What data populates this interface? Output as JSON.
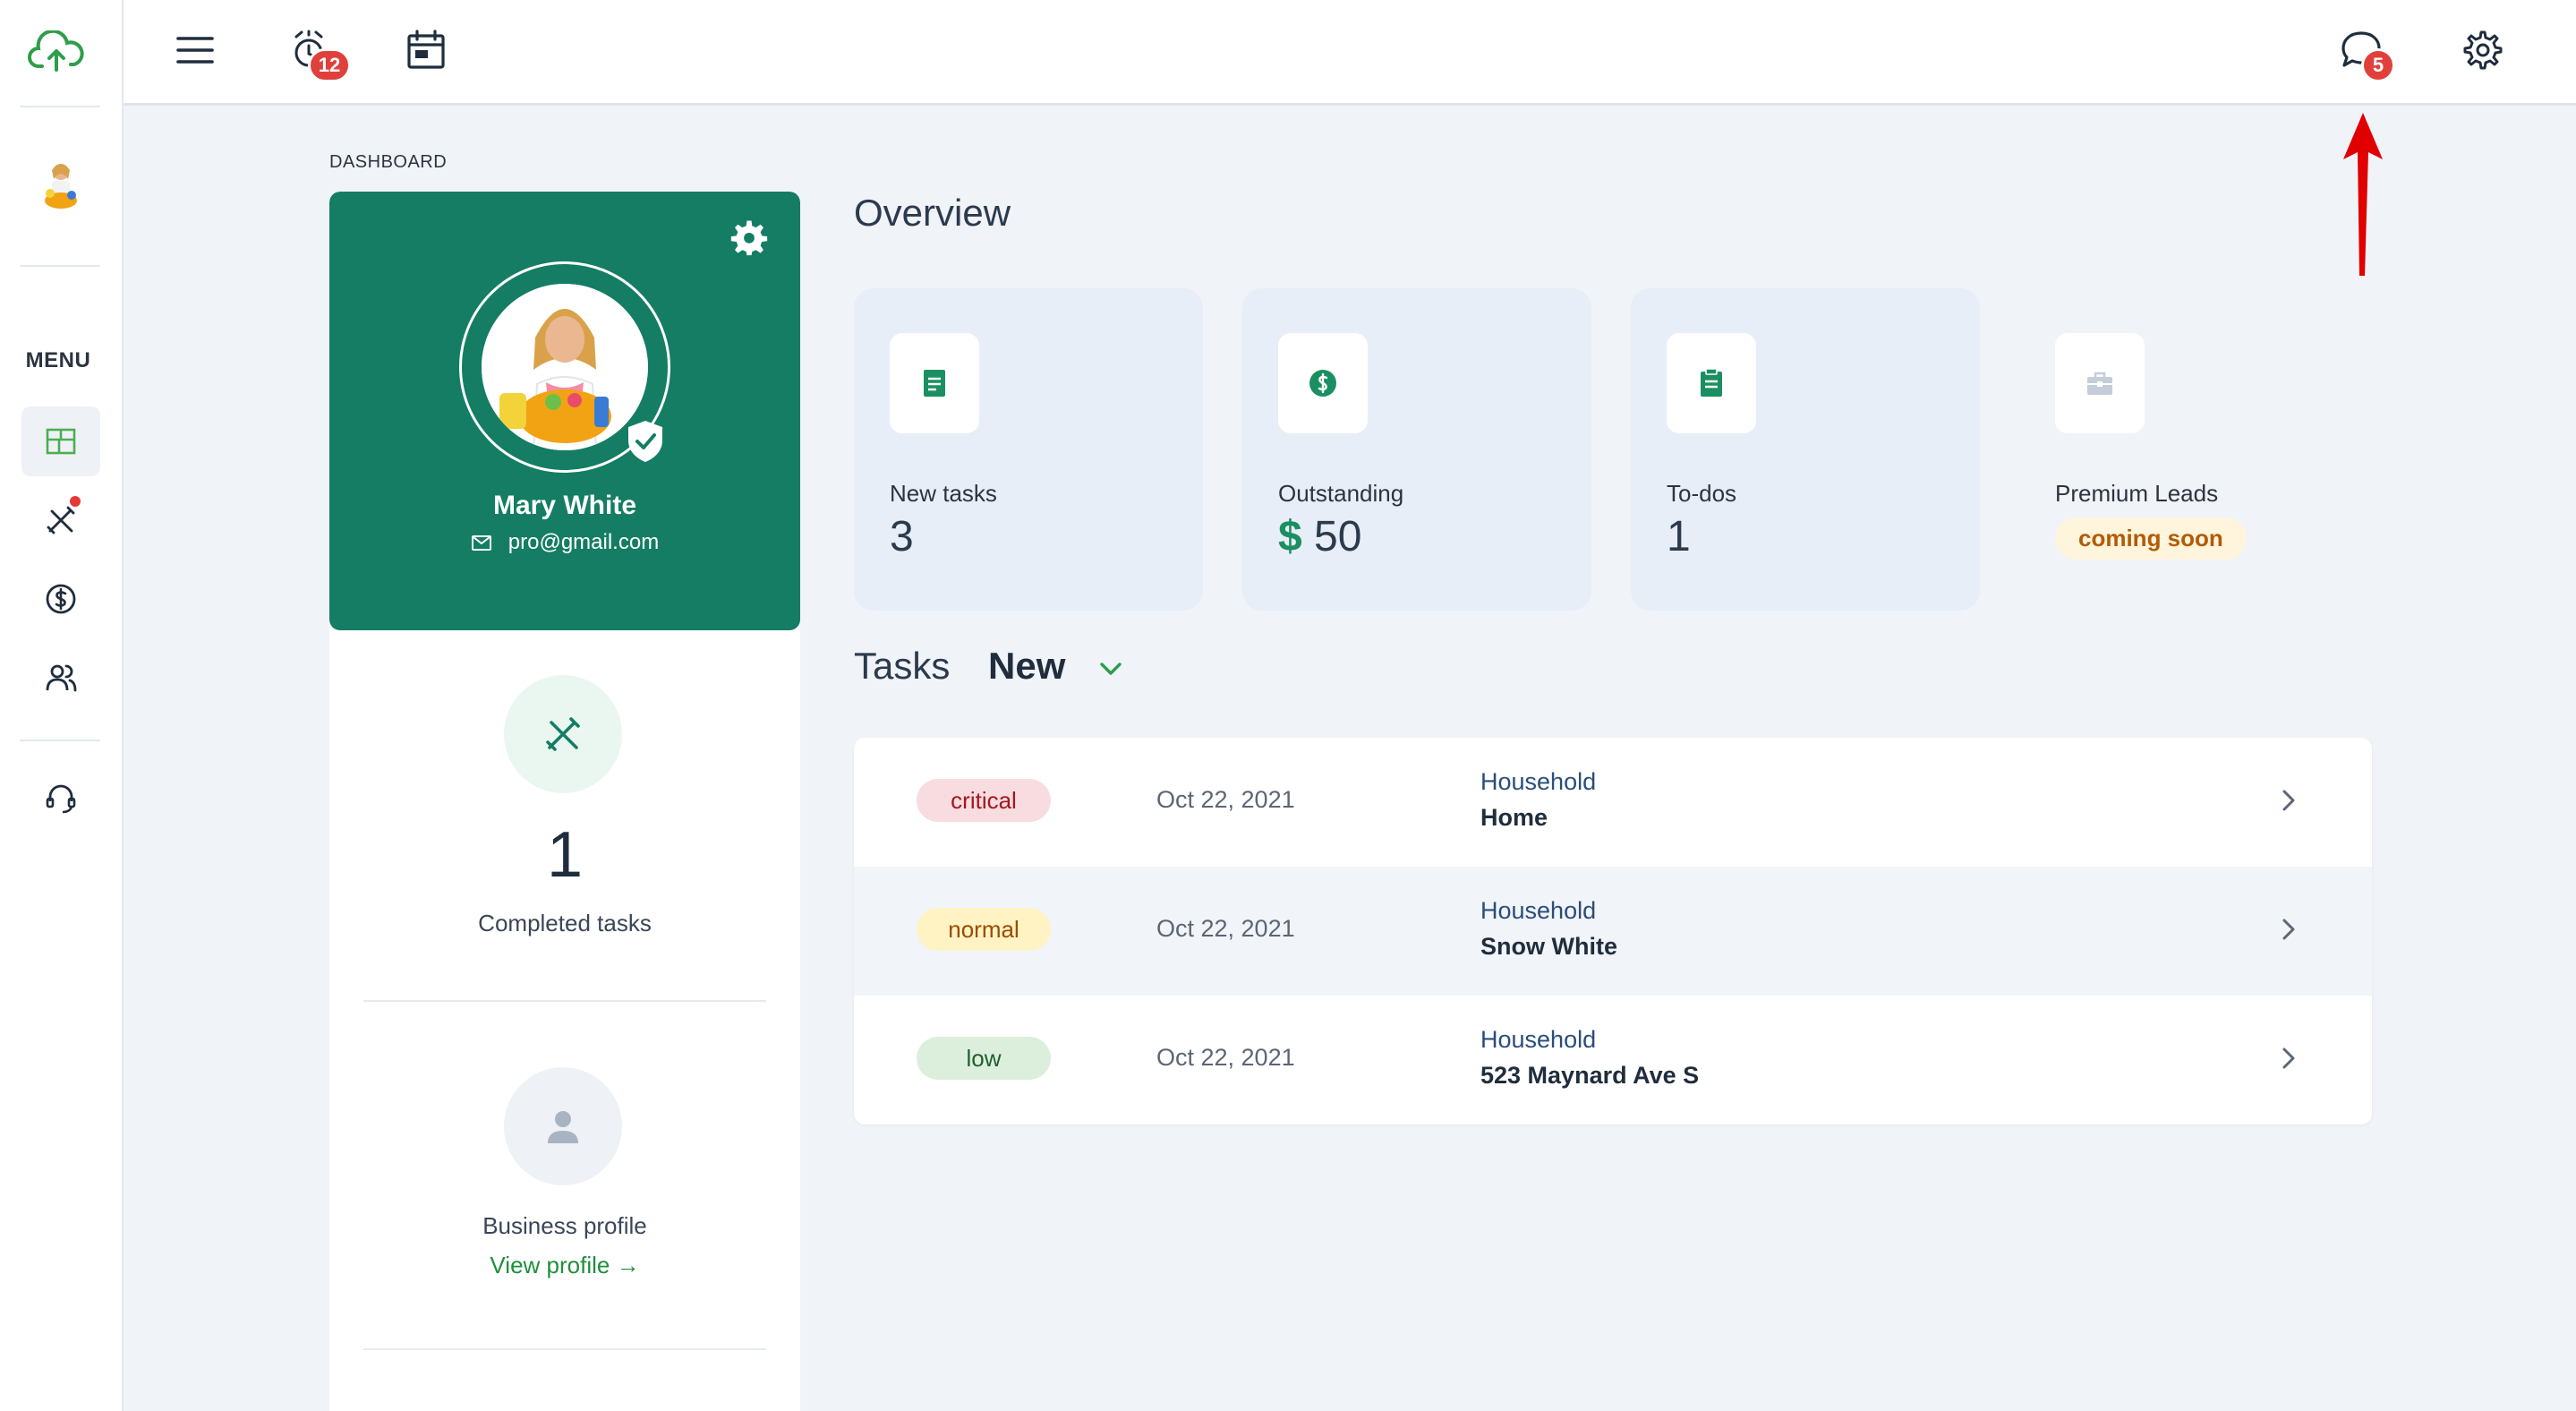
{
  "topbar": {
    "alarm_badge": "12",
    "chat_badge": "5"
  },
  "sidebar": {
    "menu_label": "MENU"
  },
  "breadcrumb": "DASHBOARD",
  "profile": {
    "name": "Mary White",
    "email": "pro@gmail.com",
    "completed_count": "1",
    "completed_label": "Completed tasks",
    "business_label": "Business profile",
    "view_profile": "View profile →"
  },
  "overview": {
    "title": "Overview",
    "cards": [
      {
        "label": "New tasks",
        "value": "3",
        "icon": "document-icon"
      },
      {
        "label": "Outstanding",
        "currency": "$",
        "value": "50",
        "icon": "dollar-icon"
      },
      {
        "label": "To-dos",
        "value": "1",
        "icon": "clipboard-icon"
      },
      {
        "label": "Premium Leads",
        "badge": "coming soon",
        "icon": "briefcase-icon"
      }
    ]
  },
  "tasks": {
    "title": "Tasks",
    "filter": "New",
    "rows": [
      {
        "priority": "critical",
        "date": "Oct 22, 2021",
        "category": "Household",
        "name": "Home"
      },
      {
        "priority": "normal",
        "date": "Oct 22, 2021",
        "category": "Household",
        "name": "Snow White"
      },
      {
        "priority": "low",
        "date": "Oct 22, 2021",
        "category": "Household",
        "name": "523 Maynard Ave S"
      }
    ]
  },
  "colors": {
    "brand_green": "#147d63",
    "critical_bg": "#f8dcdf",
    "critical_fg": "#a4161f",
    "normal_bg": "#fff3c4",
    "normal_fg": "#9a4b00",
    "low_bg": "#dcefdc",
    "low_fg": "#1f5f2e",
    "badge_red": "#e0403b"
  }
}
